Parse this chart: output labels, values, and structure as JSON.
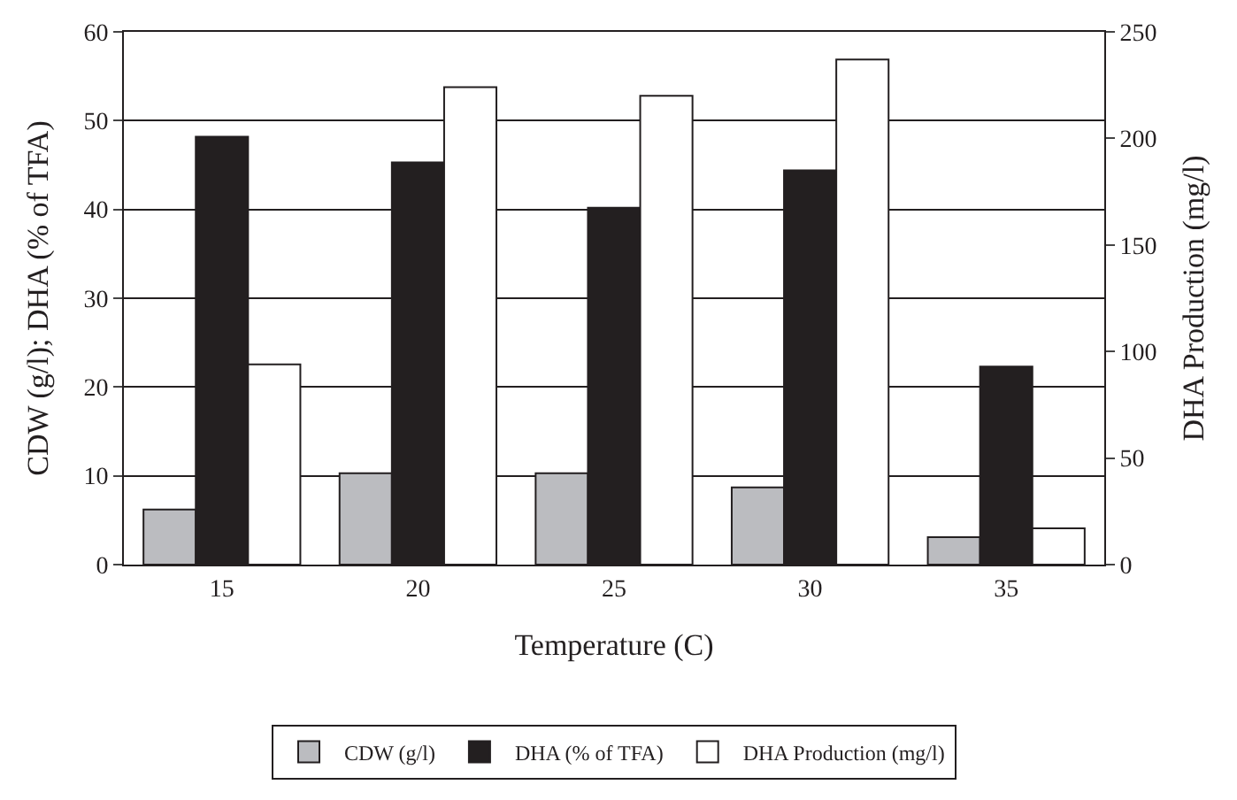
{
  "chart_data": {
    "type": "bar",
    "xlabel": "Temperature (C)",
    "ylabel": "CDW (g/l); DHA (% of TFA)",
    "y2label": "DHA Production (mg/l)",
    "categories": [
      "15",
      "20",
      "25",
      "30",
      "35"
    ],
    "series": [
      {
        "name": "CDW (g/l)",
        "color": "#bbbcc0",
        "values": [
          6.2,
          10.3,
          10.3,
          8.7,
          3.1
        ]
      },
      {
        "name": "DHA (% of TFA)",
        "color": "#231f20",
        "values": [
          48.2,
          45.3,
          40.2,
          44.4,
          22.3
        ]
      },
      {
        "name": "DHA Production (mg/l)",
        "color": "#ffffff",
        "axis": "y2",
        "values": [
          94,
          224,
          220,
          237,
          17
        ]
      }
    ],
    "ylim": [
      0,
      60
    ],
    "yticks": [
      0,
      10,
      20,
      30,
      40,
      50,
      60
    ],
    "y2lim": [
      0,
      250
    ],
    "y2ticks": [
      0,
      50,
      100,
      150,
      200,
      250
    ],
    "grid": "y",
    "legend": "bottom"
  }
}
